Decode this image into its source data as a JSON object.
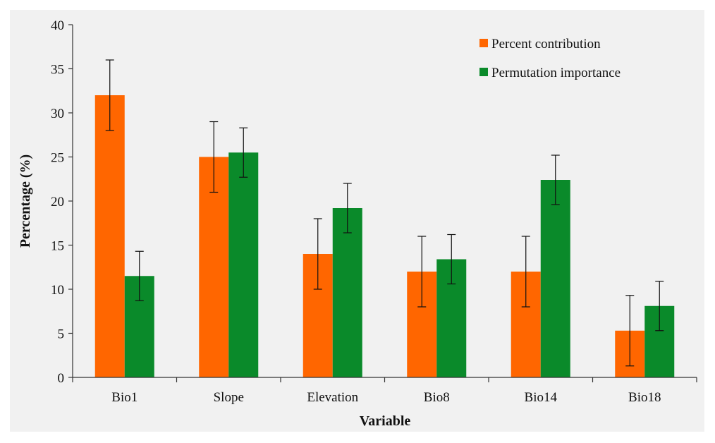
{
  "chart_data": {
    "type": "bar",
    "title": "",
    "xlabel": "Variable",
    "ylabel": "Percentage (%)",
    "ylim": [
      0,
      40
    ],
    "yticks": [
      0,
      5,
      10,
      15,
      20,
      25,
      30,
      35,
      40
    ],
    "categories": [
      "Bio1",
      "Slope",
      "Elevation",
      "Bio8",
      "Bio14",
      "Bio18"
    ],
    "series": [
      {
        "name": "Percent contribution",
        "color": "#ff6600",
        "values": [
          32,
          25,
          14,
          12,
          12,
          5.3
        ],
        "errors": [
          4,
          4,
          4,
          4,
          4,
          4
        ]
      },
      {
        "name": "Permutation importance",
        "color": "#0a8a2a",
        "values": [
          11.5,
          25.5,
          19.2,
          13.4,
          22.4,
          8.1
        ],
        "errors": [
          2.8,
          2.8,
          2.8,
          2.8,
          2.8,
          2.8
        ]
      }
    ],
    "legend": "top-right",
    "grid": false
  }
}
